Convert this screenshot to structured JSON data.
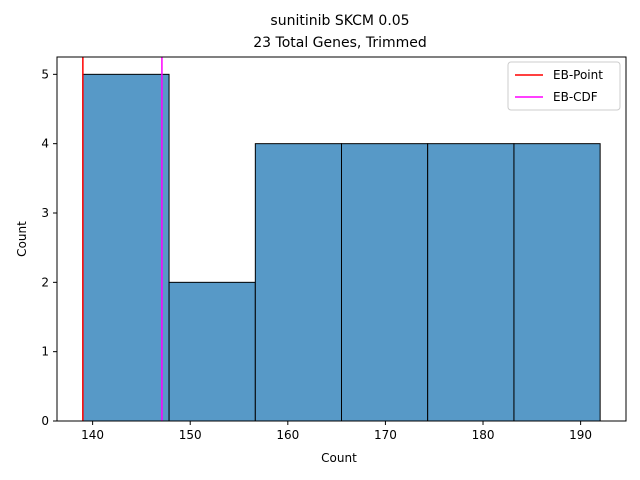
{
  "chart_data": {
    "type": "bar",
    "title": "sunitinib SKCM 0.05",
    "subtitle": "23 Total Genes, Trimmed",
    "xlabel": "Count",
    "ylabel": "Count",
    "xlim": [
      136.35,
      194.65
    ],
    "ylim": [
      0,
      5.25
    ],
    "xticks": [
      140,
      150,
      160,
      170,
      180,
      190
    ],
    "yticks": [
      0,
      1,
      2,
      3,
      4,
      5
    ],
    "bins": [
      {
        "x0": 139.0,
        "x1": 147.83,
        "count": 5
      },
      {
        "x0": 147.83,
        "x1": 156.67,
        "count": 2
      },
      {
        "x0": 156.67,
        "x1": 165.5,
        "count": 4
      },
      {
        "x0": 165.5,
        "x1": 174.33,
        "count": 4
      },
      {
        "x0": 174.33,
        "x1": 183.17,
        "count": 4
      },
      {
        "x0": 183.17,
        "x1": 192.0,
        "count": 4
      }
    ],
    "vlines": [
      {
        "name": "EB-Point",
        "x": 139.0,
        "color": "#ff0000"
      },
      {
        "name": "EB-CDF",
        "x": 147.1,
        "color": "#ff00ff"
      }
    ],
    "bar_color": "#5799c7",
    "edge_color": "#000000",
    "legend_position": "top-right",
    "grid": false
  }
}
